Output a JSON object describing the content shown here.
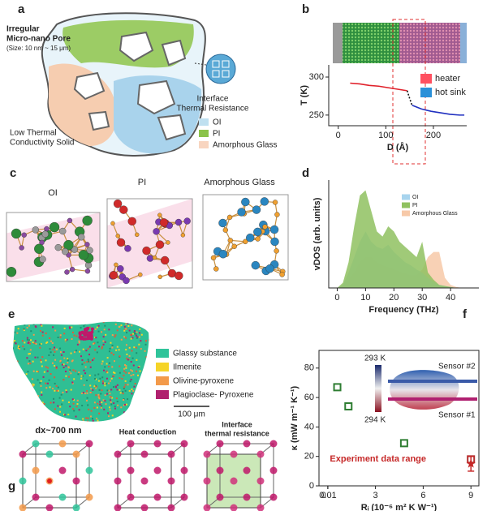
{
  "panels": {
    "a": {
      "letter": "a",
      "pore_lines": [
        "Irregular",
        "Micro-nano Pore"
      ],
      "pore_size": "(Size: 10 nm ~ 15 μm)",
      "interface_lines": [
        "Interface",
        "Thermal Resistance"
      ],
      "solid_lines": [
        "Low Thermal",
        "Conductivity Solid"
      ],
      "legend": [
        "OI",
        "PI",
        "Amorphous Glass"
      ],
      "legend_colors": [
        "#bfe0f0",
        "#8bc34a",
        "#f8d5c0"
      ]
    },
    "c": {
      "letter": "c",
      "labels": [
        "OI",
        "PI",
        "Amorphous Glass"
      ]
    },
    "e": {
      "letter": "e",
      "legend": [
        "Glassy substance",
        "Ilmenite",
        "Olivine-pyroxene",
        "Plagioclase- Pyroxene"
      ],
      "legend_colors": [
        "#2fc49a",
        "#f5d428",
        "#f39a4a",
        "#b0206e"
      ],
      "scale": "100 μm"
    },
    "g": {
      "letter": "g",
      "labels": [
        "dx~700 nm",
        "Heat conduction"
      ],
      "interface_lines": [
        "Interface",
        "thermal resistance"
      ]
    }
  },
  "chart_data": [
    {
      "type": "line",
      "panel": "b",
      "xlabel": "D (Å)",
      "ylabel": "T (K)",
      "xlim": [
        -20,
        270
      ],
      "ylim": [
        236,
        316
      ],
      "xticks": [
        0,
        100,
        200
      ],
      "yticks": [
        250,
        300
      ],
      "series": [
        {
          "name": "heater",
          "color": "#e0202a",
          "x": [
            25,
            45,
            65,
            85,
            105,
            125,
            145
          ],
          "values": [
            292,
            291,
            289,
            288,
            286,
            284,
            282
          ]
        },
        {
          "color": "#111111",
          "style": "dotted",
          "x": [
            145,
            150,
            155
          ],
          "values": [
            282,
            272,
            263
          ]
        },
        {
          "name": "hot sink",
          "color": "#2030c0",
          "x": [
            155,
            175,
            195,
            215,
            235,
            255,
            265
          ],
          "values": [
            263,
            258,
            255,
            253,
            251,
            250,
            250
          ]
        }
      ],
      "legend_colors": [
        "#ff5060",
        "#2a90d8"
      ]
    },
    {
      "type": "area",
      "panel": "d",
      "xlabel": "Frequency (THz)",
      "ylabel": "vDOS (arb. units)",
      "xlim": [
        -3,
        50
      ],
      "ylim": [
        0,
        1.05
      ],
      "xticks": [
        0,
        10,
        20,
        30,
        40
      ],
      "x": [
        0,
        2,
        4,
        6,
        8,
        10,
        12,
        14,
        16,
        18,
        20,
        22,
        24,
        26,
        28,
        30,
        32,
        34,
        36,
        38,
        40,
        42,
        44,
        46,
        48
      ],
      "series": [
        {
          "name": "OI",
          "color": "#a8d4ee",
          "values": [
            0,
            0.03,
            0.15,
            0.3,
            0.45,
            0.55,
            0.45,
            0.4,
            0.38,
            0.42,
            0.35,
            0.3,
            0.25,
            0.22,
            0.18,
            0.15,
            0.1,
            0.06,
            0.03,
            0.02,
            0.01,
            0,
            0,
            0,
            0
          ]
        },
        {
          "name": "PI",
          "color": "#8fc160",
          "values": [
            0,
            0.05,
            0.25,
            0.6,
            0.9,
            0.95,
            0.75,
            0.55,
            0.5,
            0.6,
            0.55,
            0.45,
            0.4,
            0.35,
            0.3,
            0.45,
            0.15,
            0.08,
            0.03,
            0.02,
            0.01,
            0,
            0,
            0,
            0
          ]
        },
        {
          "name": "Amorphous Glass",
          "color": "#f7c9a8",
          "values": [
            0,
            0.02,
            0.08,
            0.15,
            0.25,
            0.3,
            0.3,
            0.25,
            0.22,
            0.2,
            0.18,
            0.16,
            0.14,
            0.12,
            0.12,
            0.18,
            0.3,
            0.35,
            0.35,
            0.1,
            0.03,
            0.01,
            0,
            0,
            0
          ]
        }
      ],
      "draw_order": [
        2,
        0,
        1
      ]
    },
    {
      "type": "scatter",
      "panel": "f",
      "xlabel": "Rᵢ (10⁻⁶ m² K W⁻¹)",
      "ylabel": "κ (mW m⁻¹ K⁻¹)",
      "xlim": [
        -0.55,
        9.5
      ],
      "ylim": [
        0,
        92
      ],
      "xticks": [
        0,
        0.01,
        3,
        6,
        9
      ],
      "yticks": [
        0,
        20,
        40,
        60,
        80
      ],
      "frame": "box",
      "series": [
        {
          "color": "#2e7d32",
          "x": [
            0.6,
            1.3,
            4.8
          ],
          "values": [
            67,
            54,
            29
          ]
        },
        {
          "color": "#b03030",
          "x": [
            9
          ],
          "values": [
            18
          ]
        }
      ],
      "experiment": {
        "label": "Experiment data range",
        "color": "#c62828",
        "x": [
          9
        ],
        "values": [
          15
        ],
        "errors": [
          5
        ]
      },
      "colorbar_labels": [
        "293 K",
        "294 K"
      ],
      "sensor_labels": [
        "Sensor #2",
        "Sensor #1"
      ]
    }
  ]
}
